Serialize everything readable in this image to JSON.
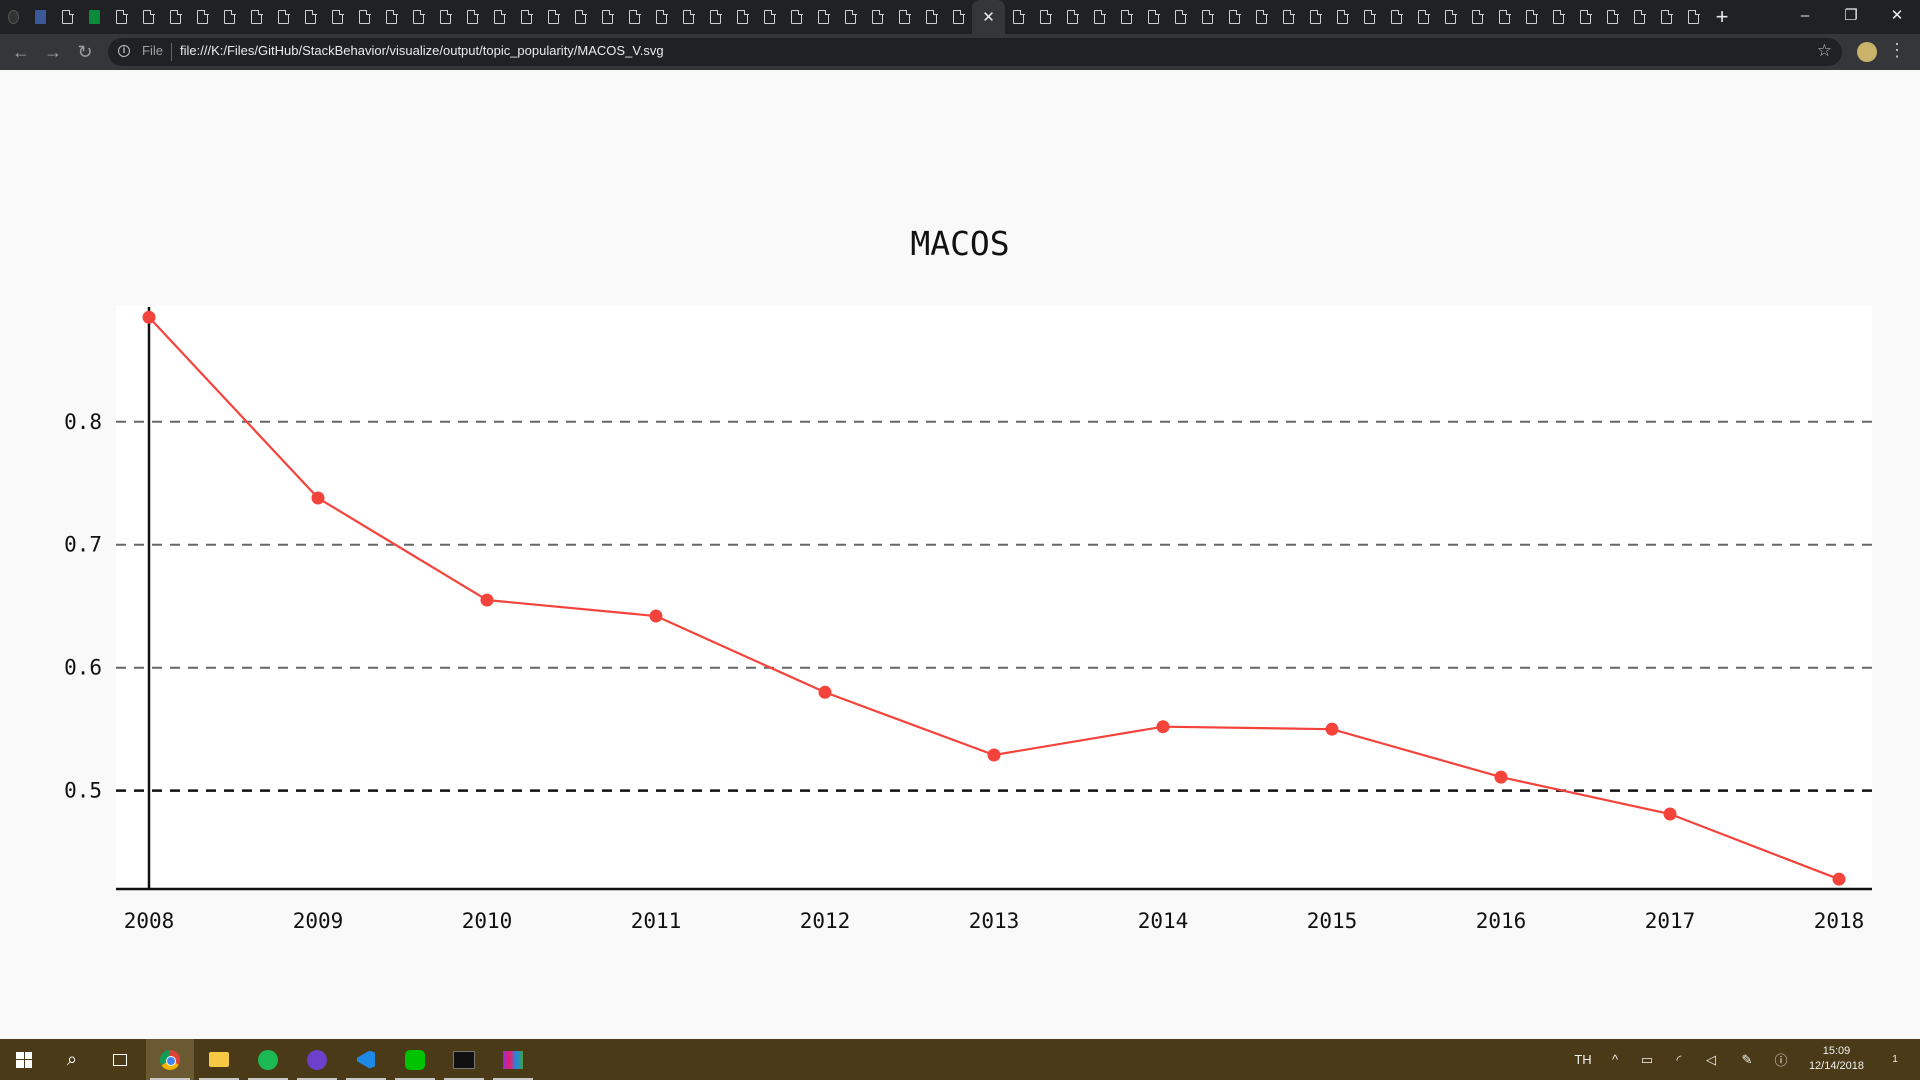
{
  "browser": {
    "tabs": [
      {
        "icon": "github-icon"
      },
      {
        "icon": "facebook-icon"
      },
      {
        "icon": "document-icon"
      },
      {
        "icon": "green-app-icon"
      },
      {
        "icon": "file-icon"
      },
      {
        "icon": "file-icon"
      },
      {
        "icon": "file-icon"
      },
      {
        "icon": "file-icon"
      },
      {
        "icon": "file-icon"
      },
      {
        "icon": "file-icon"
      },
      {
        "icon": "file-icon"
      },
      {
        "icon": "file-icon"
      },
      {
        "icon": "file-icon"
      },
      {
        "icon": "file-icon"
      },
      {
        "icon": "file-icon"
      },
      {
        "icon": "file-icon"
      },
      {
        "icon": "file-icon"
      },
      {
        "icon": "file-icon"
      },
      {
        "icon": "file-icon"
      },
      {
        "icon": "file-icon"
      },
      {
        "icon": "file-icon"
      },
      {
        "icon": "file-icon"
      },
      {
        "icon": "file-icon"
      },
      {
        "icon": "file-icon"
      },
      {
        "icon": "file-icon"
      },
      {
        "icon": "file-icon"
      },
      {
        "icon": "file-icon"
      },
      {
        "icon": "file-icon"
      },
      {
        "icon": "file-icon"
      },
      {
        "icon": "file-icon"
      },
      {
        "icon": "file-icon"
      },
      {
        "icon": "file-icon"
      },
      {
        "icon": "file-icon"
      },
      {
        "icon": "file-icon"
      },
      {
        "icon": "file-icon"
      },
      {
        "icon": "file-icon"
      },
      {
        "icon": "close-icon",
        "active": true
      },
      {
        "icon": "file-icon"
      },
      {
        "icon": "file-icon"
      },
      {
        "icon": "file-icon"
      },
      {
        "icon": "file-icon"
      },
      {
        "icon": "file-icon"
      },
      {
        "icon": "file-icon"
      },
      {
        "icon": "file-icon"
      },
      {
        "icon": "file-icon"
      },
      {
        "icon": "file-icon"
      },
      {
        "icon": "file-icon"
      },
      {
        "icon": "file-icon"
      },
      {
        "icon": "file-icon"
      },
      {
        "icon": "file-icon"
      },
      {
        "icon": "file-icon"
      },
      {
        "icon": "file-icon"
      },
      {
        "icon": "file-icon"
      },
      {
        "icon": "file-icon"
      },
      {
        "icon": "file-icon"
      },
      {
        "icon": "file-icon"
      },
      {
        "icon": "file-icon"
      },
      {
        "icon": "file-icon"
      },
      {
        "icon": "file-icon"
      },
      {
        "icon": "file-icon"
      },
      {
        "icon": "file-icon"
      },
      {
        "icon": "file-icon"
      },
      {
        "icon": "file-icon"
      }
    ],
    "new_tab_label": "+",
    "window_controls": {
      "minimize": "–",
      "restore": "❐",
      "close": "✕"
    },
    "nav": {
      "back": "←",
      "forward": "→",
      "reload": "↻"
    },
    "address": {
      "chip_label": "File",
      "url": "file:///K:/Files/GitHub/StackBehavior/visualize/output/topic_popularity/MACOS_V.svg"
    }
  },
  "chart_data": {
    "type": "line",
    "title": "MACOS",
    "x": [
      "2008",
      "2009",
      "2010",
      "2011",
      "2012",
      "2013",
      "2014",
      "2015",
      "2016",
      "2017",
      "2018"
    ],
    "series": [
      {
        "values": [
          0.885,
          0.738,
          0.655,
          0.642,
          0.58,
          0.529,
          0.552,
          0.55,
          0.511,
          0.481,
          0.428
        ],
        "color": "#f4433b"
      }
    ],
    "yticks": [
      "0.5",
      "0.6",
      "0.7",
      "0.8"
    ],
    "ylim": [
      0.42,
      0.895
    ],
    "grid": true,
    "grid_style": "dashed",
    "highlight_line": 0.5,
    "legend": "none",
    "background": "#ffffff"
  },
  "taskbar": {
    "apps": [
      {
        "name": "windows-start-icon"
      },
      {
        "name": "search-icon"
      },
      {
        "name": "task-view-icon"
      },
      {
        "name": "chrome-icon",
        "active": true
      },
      {
        "name": "file-explorer-icon"
      },
      {
        "name": "spotify-icon"
      },
      {
        "name": "github-desktop-icon"
      },
      {
        "name": "vscode-icon"
      },
      {
        "name": "line-icon"
      },
      {
        "name": "terminal-icon"
      },
      {
        "name": "winrar-icon"
      }
    ],
    "tray": {
      "language": "TH",
      "time": "15:09",
      "date": "12/14/2018",
      "notification_count": "1"
    }
  }
}
